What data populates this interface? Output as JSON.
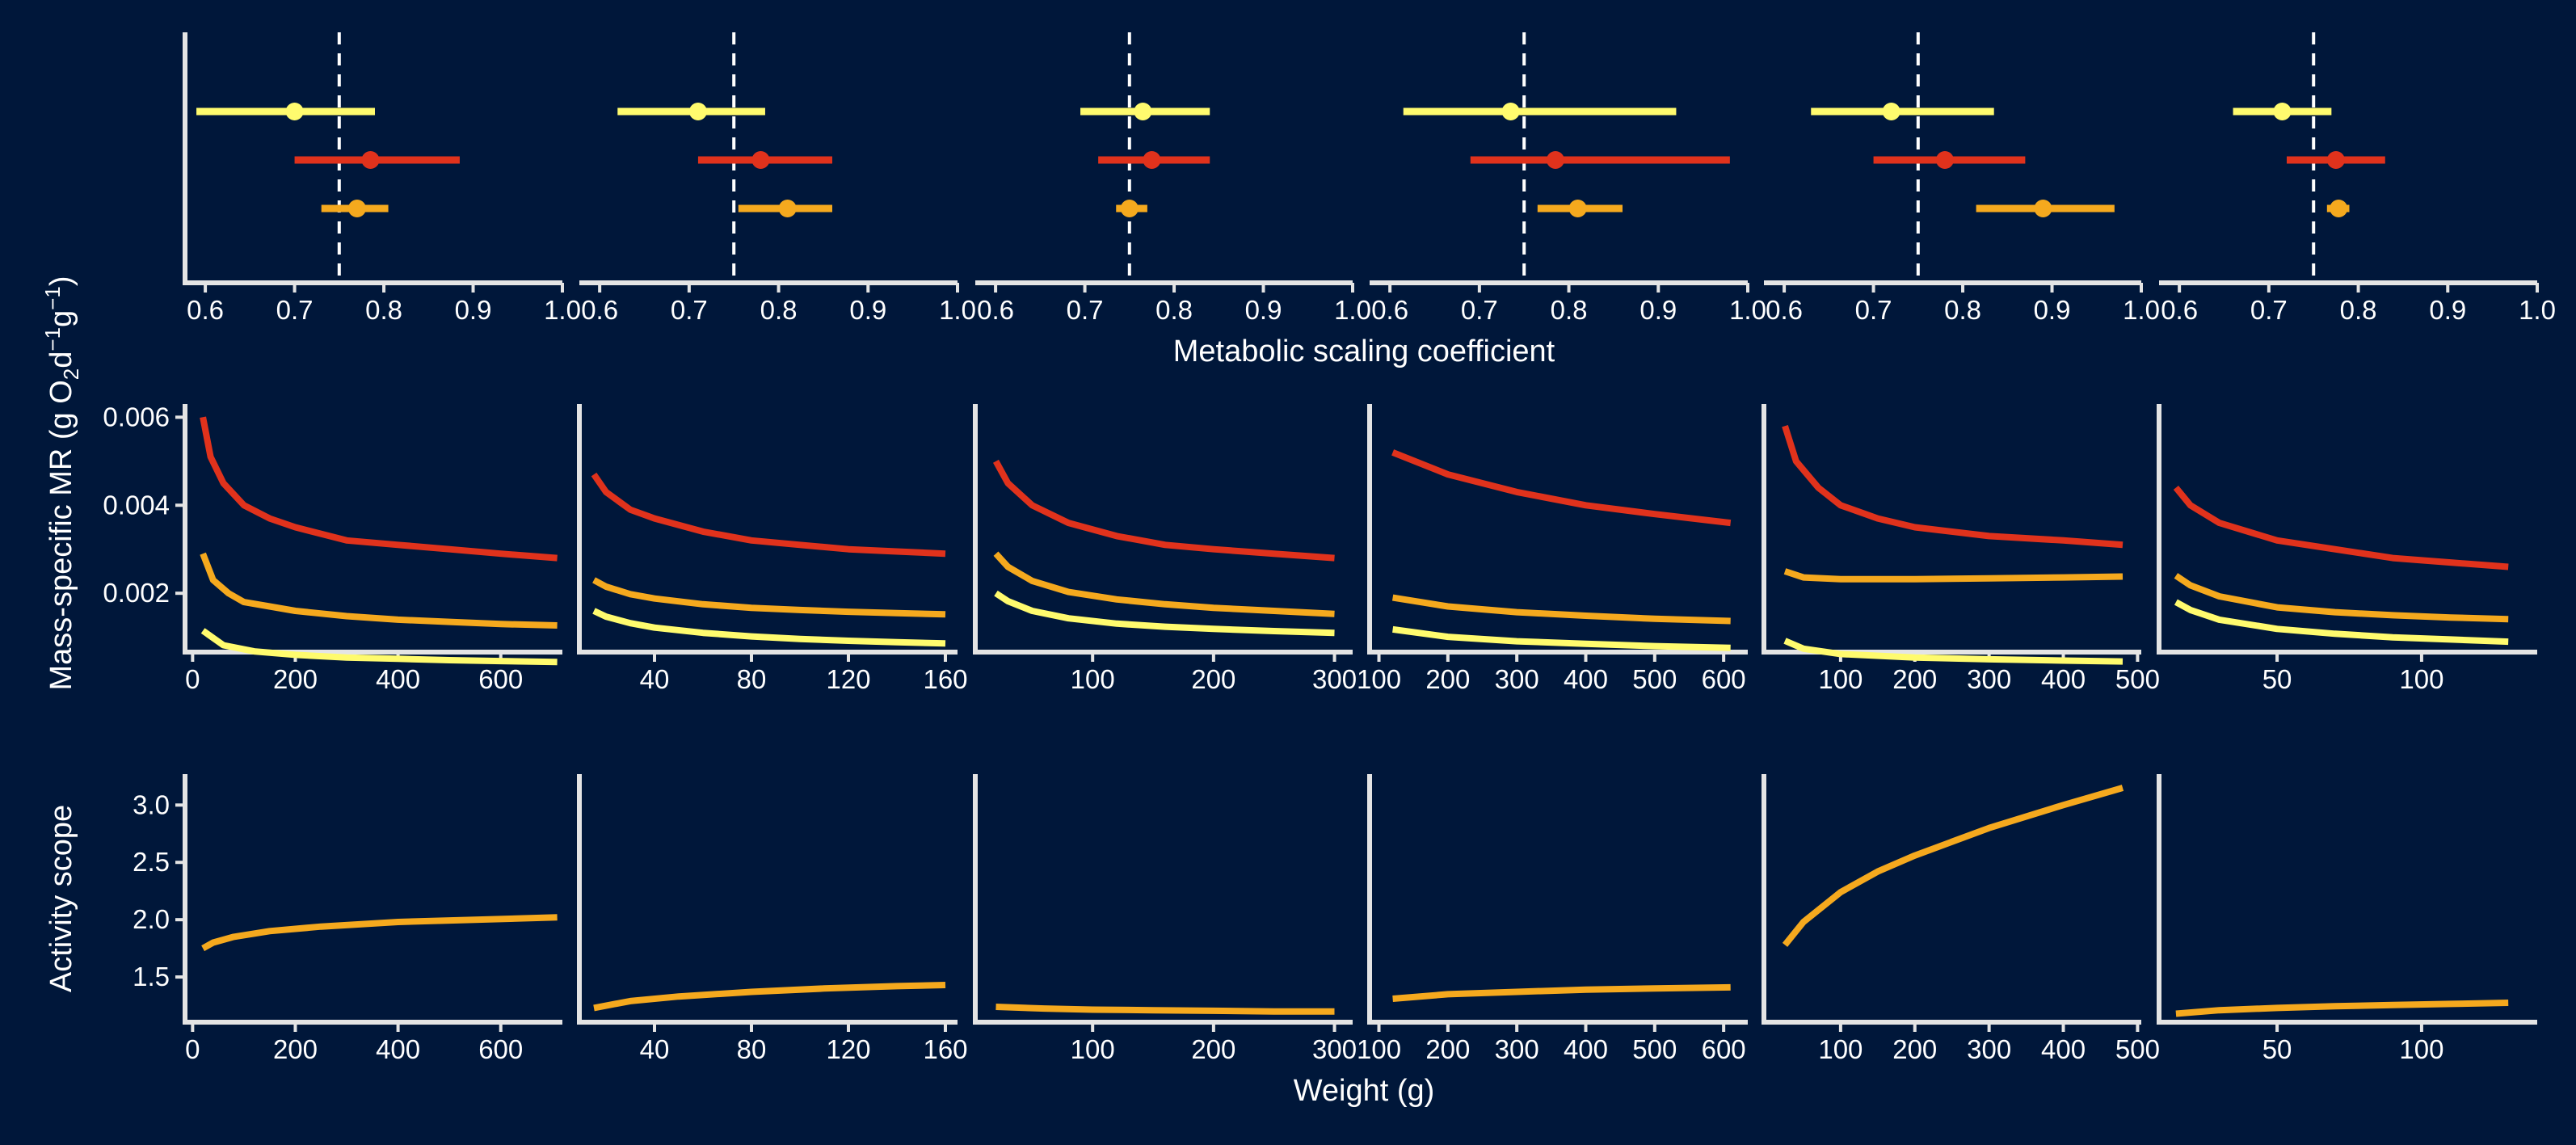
{
  "colors": {
    "background": "#00173a",
    "axis": "#e4e4e4",
    "text": "#ffffff",
    "series": [
      "#fffb6e",
      "#e0321c",
      "#f5a91e"
    ]
  },
  "labels": {
    "row1_xlabel": "Metabolic scaling coefficient",
    "row2_ylabel_main": "Mass-specific MR (g O",
    "row2_ylabel_sub1": "2",
    "row2_ylabel_d": "d",
    "row2_ylabel_sup1": "−1",
    "row2_ylabel_g": "g",
    "row2_ylabel_sup2": "−1",
    "row2_ylabel_close": ")",
    "row3_ylabel": "Activity scope",
    "row3_xlabel": "Weight (g)"
  },
  "chart_data": [
    {
      "type": "scatter",
      "row": "scaling-coefficient",
      "xlabel": "Metabolic scaling coefficient",
      "xlim": [
        0.58,
        1.0
      ],
      "reference_x": 0.75,
      "xticks": [
        0.6,
        0.7,
        0.8,
        0.9,
        1.0
      ],
      "xtick_labels": [
        "0.6",
        "0.7",
        "0.8",
        "0.9",
        "1.0"
      ],
      "panels": [
        {
          "series": [
            {
              "estimate": 0.7,
              "low": 0.59,
              "high": 0.79
            },
            {
              "estimate": 0.785,
              "low": 0.7,
              "high": 0.885
            },
            {
              "estimate": 0.77,
              "low": 0.73,
              "high": 0.805
            }
          ]
        },
        {
          "series": [
            {
              "estimate": 0.71,
              "low": 0.62,
              "high": 0.785
            },
            {
              "estimate": 0.78,
              "low": 0.71,
              "high": 0.86
            },
            {
              "estimate": 0.81,
              "low": 0.755,
              "high": 0.86
            }
          ]
        },
        {
          "series": [
            {
              "estimate": 0.765,
              "low": 0.695,
              "high": 0.84
            },
            {
              "estimate": 0.775,
              "low": 0.715,
              "high": 0.84
            },
            {
              "estimate": 0.75,
              "low": 0.735,
              "high": 0.77
            }
          ]
        },
        {
          "series": [
            {
              "estimate": 0.735,
              "low": 0.615,
              "high": 0.92
            },
            {
              "estimate": 0.785,
              "low": 0.69,
              "high": 0.98
            },
            {
              "estimate": 0.81,
              "low": 0.765,
              "high": 0.86
            }
          ]
        },
        {
          "series": [
            {
              "estimate": 0.72,
              "low": 0.63,
              "high": 0.835
            },
            {
              "estimate": 0.78,
              "low": 0.7,
              "high": 0.87
            },
            {
              "estimate": 0.89,
              "low": 0.815,
              "high": 0.97
            }
          ]
        },
        {
          "series": [
            {
              "estimate": 0.715,
              "low": 0.66,
              "high": 0.77
            },
            {
              "estimate": 0.775,
              "low": 0.72,
              "high": 0.83
            },
            {
              "estimate": 0.778,
              "low": 0.765,
              "high": 0.79
            }
          ]
        }
      ]
    },
    {
      "type": "line",
      "row": "mass-specific-mr",
      "ylim": [
        0.0007,
        0.0063
      ],
      "yticks": [
        0.002,
        0.004,
        0.006
      ],
      "ytick_labels": [
        "0.002",
        "0.004",
        "0.006"
      ],
      "panels": [
        {
          "xlim": [
            -10,
            720
          ],
          "xticks": [
            0,
            200,
            400,
            600
          ],
          "xtick_labels": [
            "0",
            "200",
            "400",
            "600"
          ],
          "series": [
            {
              "x": [
                20,
                60,
                120,
                200,
                300,
                400,
                500,
                600,
                710
              ],
              "y": [
                0.00115,
                0.00082,
                0.00068,
                0.0006,
                0.00054,
                0.00051,
                0.00048,
                0.00046,
                0.00044
              ]
            },
            {
              "x": [
                20,
                35,
                60,
                100,
                150,
                200,
                300,
                400,
                500,
                600,
                710
              ],
              "y": [
                0.006,
                0.0051,
                0.0045,
                0.004,
                0.0037,
                0.0035,
                0.0032,
                0.0031,
                0.003,
                0.0029,
                0.0028
              ]
            },
            {
              "x": [
                20,
                40,
                70,
                100,
                150,
                200,
                300,
                400,
                500,
                600,
                710
              ],
              "y": [
                0.0029,
                0.0023,
                0.002,
                0.0018,
                0.0017,
                0.0016,
                0.00148,
                0.0014,
                0.00135,
                0.0013,
                0.00127
              ]
            }
          ]
        },
        {
          "xlim": [
            10,
            165
          ],
          "xticks": [
            40,
            80,
            120,
            160
          ],
          "xtick_labels": [
            "40",
            "80",
            "120",
            "160"
          ],
          "series": [
            {
              "x": [
                15,
                20,
                30,
                40,
                60,
                80,
                100,
                120,
                140,
                160
              ],
              "y": [
                0.0016,
                0.00147,
                0.00132,
                0.00122,
                0.0011,
                0.00102,
                0.00096,
                0.00092,
                0.00089,
                0.00086
              ]
            },
            {
              "x": [
                15,
                20,
                30,
                40,
                60,
                80,
                100,
                120,
                140,
                160
              ],
              "y": [
                0.0047,
                0.0043,
                0.0039,
                0.0037,
                0.0034,
                0.0032,
                0.0031,
                0.003,
                0.00295,
                0.0029
              ]
            },
            {
              "x": [
                15,
                20,
                30,
                40,
                60,
                80,
                100,
                120,
                140,
                160
              ],
              "y": [
                0.0023,
                0.00215,
                0.00198,
                0.00188,
                0.00175,
                0.00167,
                0.00162,
                0.00158,
                0.00155,
                0.00152
              ]
            }
          ]
        },
        {
          "xlim": [
            5,
            315
          ],
          "xticks": [
            100,
            200,
            300
          ],
          "xtick_labels": [
            "100",
            "200",
            "300"
          ],
          "series": [
            {
              "x": [
                20,
                30,
                50,
                80,
                120,
                160,
                200,
                250,
                300
              ],
              "y": [
                0.002,
                0.00182,
                0.0016,
                0.00143,
                0.00131,
                0.00124,
                0.00119,
                0.00114,
                0.0011
              ]
            },
            {
              "x": [
                20,
                30,
                50,
                80,
                120,
                160,
                200,
                250,
                300
              ],
              "y": [
                0.005,
                0.0045,
                0.004,
                0.0036,
                0.0033,
                0.0031,
                0.003,
                0.0029,
                0.0028
              ]
            },
            {
              "x": [
                20,
                30,
                50,
                80,
                120,
                160,
                200,
                250,
                300
              ],
              "y": [
                0.0029,
                0.0026,
                0.00228,
                0.00203,
                0.00186,
                0.00175,
                0.00167,
                0.0016,
                0.00153
              ]
            }
          ]
        },
        {
          "xlim": [
            90,
            635
          ],
          "xticks": [
            100,
            200,
            300,
            400,
            500,
            600
          ],
          "xtick_labels": [
            "100",
            "200",
            "300",
            "400",
            "500",
            "600"
          ],
          "series": [
            {
              "x": [
                120,
                200,
                300,
                400,
                500,
                610
              ],
              "y": [
                0.00118,
                0.00101,
                0.00091,
                0.00085,
                0.0008,
                0.00076
              ]
            },
            {
              "x": [
                120,
                200,
                300,
                400,
                500,
                610
              ],
              "y": [
                0.0052,
                0.0047,
                0.0043,
                0.004,
                0.0038,
                0.0036
              ]
            },
            {
              "x": [
                120,
                200,
                300,
                400,
                500,
                610
              ],
              "y": [
                0.0019,
                0.0017,
                0.00157,
                0.00149,
                0.00142,
                0.00137
              ]
            }
          ]
        },
        {
          "xlim": [
            0,
            505
          ],
          "xticks": [
            100,
            200,
            300,
            400,
            500
          ],
          "xtick_labels": [
            "100",
            "200",
            "300",
            "400",
            "500"
          ],
          "series": [
            {
              "x": [
                25,
                50,
                100,
                200,
                300,
                400,
                480
              ],
              "y": [
                0.00092,
                0.00074,
                0.00062,
                0.00054,
                0.0005,
                0.00047,
                0.00045
              ]
            },
            {
              "x": [
                25,
                40,
                70,
                100,
                150,
                200,
                300,
                400,
                480
              ],
              "y": [
                0.0058,
                0.005,
                0.0044,
                0.004,
                0.0037,
                0.0035,
                0.0033,
                0.0032,
                0.0031
              ]
            },
            {
              "x": [
                25,
                50,
                100,
                200,
                300,
                400,
                480
              ],
              "y": [
                0.0025,
                0.00236,
                0.00232,
                0.00232,
                0.00234,
                0.00236,
                0.00238
              ]
            }
          ]
        },
        {
          "xlim": [
            10,
            140
          ],
          "xticks": [
            50,
            100
          ],
          "xtick_labels": [
            "50",
            "100"
          ],
          "series": [
            {
              "x": [
                15,
                20,
                30,
                50,
                70,
                90,
                110,
                130
              ],
              "y": [
                0.0018,
                0.00162,
                0.0014,
                0.00119,
                0.00108,
                0.001,
                0.00095,
                0.0009
              ]
            },
            {
              "x": [
                15,
                20,
                30,
                50,
                70,
                90,
                110,
                130
              ],
              "y": [
                0.0044,
                0.004,
                0.0036,
                0.0032,
                0.003,
                0.0028,
                0.0027,
                0.0026
              ]
            },
            {
              "x": [
                15,
                20,
                30,
                50,
                70,
                90,
                110,
                130
              ],
              "y": [
                0.0024,
                0.00218,
                0.00193,
                0.00168,
                0.00157,
                0.0015,
                0.00145,
                0.00141
              ]
            }
          ]
        }
      ]
    },
    {
      "type": "line",
      "row": "activity-scope",
      "xlabel": "Weight (g)",
      "ylabel": "Activity scope",
      "ylim": [
        1.12,
        3.27
      ],
      "yticks": [
        1.5,
        2.0,
        2.5,
        3.0
      ],
      "ytick_labels": [
        "1.5",
        "2.0",
        "2.5",
        "3.0"
      ],
      "panels": [
        {
          "xlim": [
            -10,
            720
          ],
          "xticks": [
            0,
            200,
            400,
            600
          ],
          "xtick_labels": [
            "0",
            "200",
            "400",
            "600"
          ],
          "series": [
            {
              "x": [
                20,
                40,
                80,
                150,
                250,
                400,
                550,
                710
              ],
              "y": [
                1.75,
                1.8,
                1.85,
                1.9,
                1.94,
                1.98,
                2.0,
                2.02
              ]
            }
          ]
        },
        {
          "xlim": [
            10,
            165
          ],
          "xticks": [
            40,
            80,
            120,
            160
          ],
          "xtick_labels": [
            "40",
            "80",
            "120",
            "160"
          ],
          "series": [
            {
              "x": [
                15,
                30,
                50,
                80,
                110,
                140,
                160
              ],
              "y": [
                1.23,
                1.29,
                1.33,
                1.37,
                1.4,
                1.42,
                1.43
              ]
            }
          ]
        },
        {
          "xlim": [
            5,
            315
          ],
          "xticks": [
            100,
            200,
            300
          ],
          "xtick_labels": [
            "100",
            "200",
            "300"
          ],
          "series": [
            {
              "x": [
                20,
                60,
                100,
                150,
                200,
                250,
                300
              ],
              "y": [
                1.24,
                1.225,
                1.215,
                1.21,
                1.205,
                1.2,
                1.2
              ]
            }
          ]
        },
        {
          "xlim": [
            90,
            635
          ],
          "xticks": [
            100,
            200,
            300,
            400,
            500,
            600
          ],
          "xtick_labels": [
            "100",
            "200",
            "300",
            "400",
            "500",
            "600"
          ],
          "series": [
            {
              "x": [
                120,
                200,
                300,
                400,
                500,
                610
              ],
              "y": [
                1.31,
                1.35,
                1.37,
                1.39,
                1.4,
                1.41
              ]
            }
          ]
        },
        {
          "xlim": [
            0,
            505
          ],
          "xticks": [
            100,
            200,
            300,
            400,
            500
          ],
          "xtick_labels": [
            "100",
            "200",
            "300",
            "400",
            "500"
          ],
          "series": [
            {
              "x": [
                25,
                50,
                100,
                150,
                200,
                300,
                400,
                480
              ],
              "y": [
                1.78,
                1.98,
                2.24,
                2.42,
                2.56,
                2.8,
                3.0,
                3.15
              ]
            }
          ]
        },
        {
          "xlim": [
            10,
            140
          ],
          "xticks": [
            50,
            100
          ],
          "xtick_labels": [
            "50",
            "100"
          ],
          "series": [
            {
              "x": [
                15,
                30,
                50,
                70,
                90,
                110,
                130
              ],
              "y": [
                1.18,
                1.21,
                1.23,
                1.245,
                1.255,
                1.265,
                1.275
              ]
            }
          ]
        }
      ]
    }
  ]
}
